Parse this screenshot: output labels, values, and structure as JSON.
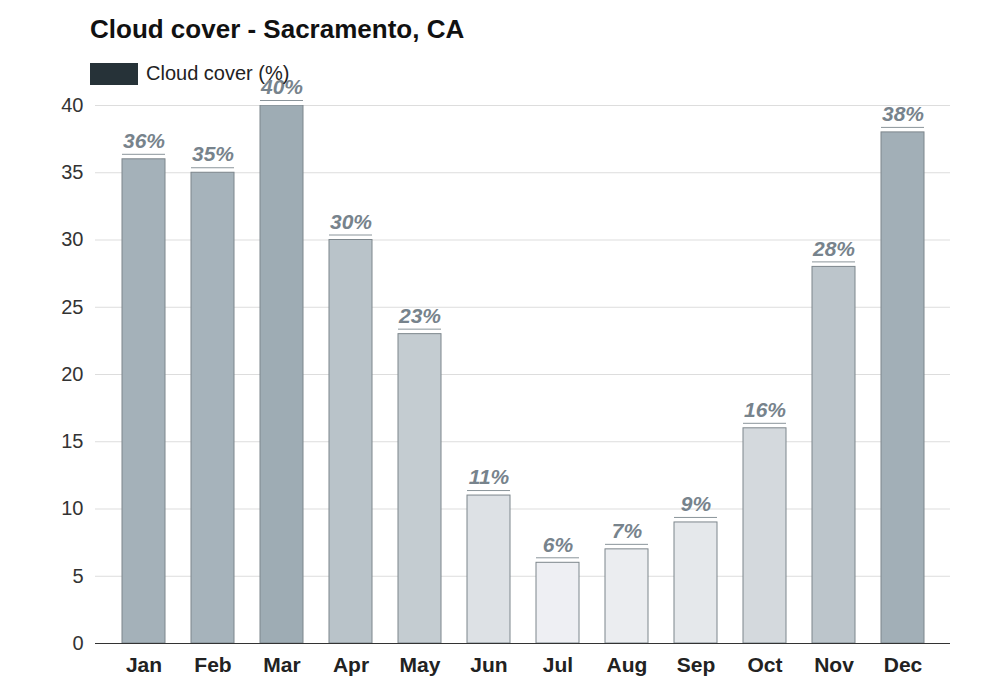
{
  "chart_data": {
    "type": "bar",
    "title": "Cloud cover - Sacramento, CA",
    "categories": [
      "Jan",
      "Feb",
      "Mar",
      "Apr",
      "May",
      "Jun",
      "Jul",
      "Aug",
      "Sep",
      "Oct",
      "Nov",
      "Dec"
    ],
    "series": [
      {
        "name": "Cloud cover (%)",
        "color": "#263238",
        "values": [
          36,
          35,
          40,
          30,
          23,
          11,
          6,
          7,
          9,
          16,
          28,
          38
        ],
        "value_labels": [
          "36%",
          "35%",
          "40%",
          "30%",
          "23%",
          "11%",
          "6%",
          "7%",
          "9%",
          "16%",
          "28%",
          "38%"
        ],
        "colors": [
          "#a4b1b9",
          "#a6b3bb",
          "#9eacb4",
          "#b9c3c9",
          "#c4ccd1",
          "#dde1e5",
          "#eeeff3",
          "#ebedf0",
          "#e5e8eb",
          "#d4d9dd",
          "#bcc5cb",
          "#a2afb7"
        ]
      }
    ],
    "ylim": [
      0,
      40
    ],
    "yticks": [
      0,
      5,
      10,
      15,
      20,
      25,
      30,
      35,
      40
    ],
    "grid": true,
    "legend": "top-left",
    "data_labels": true
  }
}
